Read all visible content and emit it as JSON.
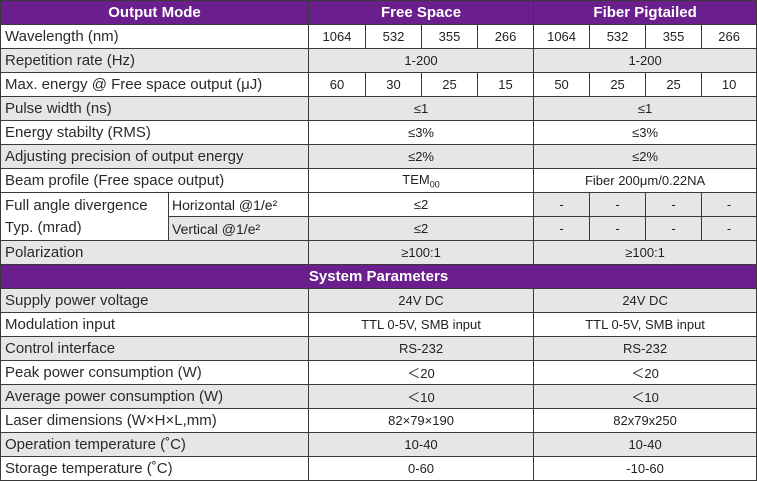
{
  "colors": {
    "header_bg": "#6b1f8c",
    "row_shade": "#e6e6e6",
    "border": "#3a3a3a"
  },
  "header": {
    "mode": "Output Mode",
    "free_space": "Free Space",
    "fiber": "Fiber Pigtailed"
  },
  "wavelength": {
    "label": "Wavelength (nm)",
    "fs": [
      "1064",
      "532",
      "355",
      "266"
    ],
    "fp": [
      "1064",
      "532",
      "355",
      "266"
    ]
  },
  "rep_rate": {
    "label": "Repetition rate (Hz)",
    "fs": "1-200",
    "fp": "1-200"
  },
  "max_energy": {
    "label": "Max. energy @ Free space output (μJ)",
    "fs": [
      "60",
      "30",
      "25",
      "15"
    ],
    "fp": [
      "50",
      "25",
      "25",
      "10"
    ]
  },
  "pulse_width": {
    "label": "Pulse width (ns)",
    "fs": "≤1",
    "fp": "≤1"
  },
  "energy_stability": {
    "label": "Energy stabilty (RMS)",
    "fs": "≤3%",
    "fp": "≤3%"
  },
  "adj_precision": {
    "label": "Adjusting precision of output energy",
    "fs": "≤2%",
    "fp": "≤2%"
  },
  "beam_profile": {
    "label": "Beam profile (Free space output)",
    "fs_main": "TEM",
    "fs_sub": "00",
    "fp": "Fiber 200μm/0.22NA"
  },
  "divergence": {
    "label_line1": "Full angle divergence",
    "label_line2": "Typ. (mrad)",
    "horizontal": {
      "label": "Horizontal @1/e²",
      "fs": "≤2",
      "fp": [
        "-",
        "-",
        "-",
        "-"
      ]
    },
    "vertical": {
      "label": "Vertical @1/e²",
      "fs": "≤2",
      "fp": [
        "-",
        "-",
        "-",
        "-"
      ]
    }
  },
  "polarization": {
    "label": "Polarization",
    "fs": "≥100:1",
    "fp": "≥100:1"
  },
  "system_params": "System Parameters",
  "supply_voltage": {
    "label": "Supply power voltage",
    "fs": "24V DC",
    "fp": "24V DC"
  },
  "modulation": {
    "label": "Modulation input",
    "fs": "TTL 0-5V, SMB input",
    "fp": "TTL 0-5V, SMB input"
  },
  "control": {
    "label": "Control interface",
    "fs": "RS-232",
    "fp": "RS-232"
  },
  "peak_power": {
    "label": "Peak power consumption (W)",
    "fs": "＜20",
    "fp": "＜20"
  },
  "avg_power": {
    "label": "Average power consumption (W)",
    "fs": "＜10",
    "fp": "＜10"
  },
  "dimensions": {
    "label": "Laser dimensions (W×H×L,mm)",
    "fs": "82×79×190",
    "fp": "82x79x250"
  },
  "op_temp": {
    "label": "Operation temperature (˚C)",
    "fs": "10-40",
    "fp": "10-40"
  },
  "storage_temp": {
    "label": "Storage temperature (˚C)",
    "fs": "0-60",
    "fp": "-10-60"
  }
}
